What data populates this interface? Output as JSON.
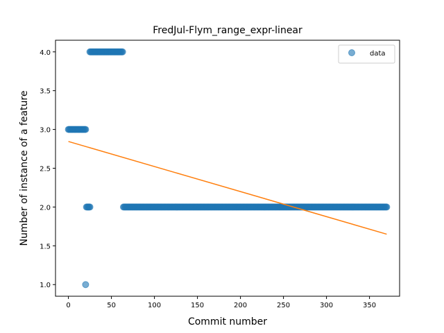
{
  "chart_data": {
    "type": "scatter",
    "title": "FredJul-Flym_range_expr-linear",
    "xlabel": "Commit number",
    "ylabel": "Number of instance of a feature",
    "xlim": [
      -15,
      385
    ],
    "ylim": [
      0.85,
      4.15
    ],
    "xticks": [
      0,
      50,
      100,
      150,
      200,
      250,
      300,
      350
    ],
    "yticks": [
      1.0,
      1.5,
      2.0,
      2.5,
      3.0,
      3.5,
      4.0
    ],
    "grid": false,
    "legend_position": "top-right",
    "colors": {
      "data": "#1f77b4",
      "fit": "#ff7f0e",
      "axes": "#000000"
    },
    "series": [
      {
        "name": "data",
        "kind": "scatter",
        "segments": [
          {
            "x_start": 0,
            "x_end": 20,
            "y": 3.0
          },
          {
            "x_start": 21,
            "x_end": 25,
            "y": 2.0
          },
          {
            "x_start": 20,
            "x_end": 20,
            "y": 1.0
          },
          {
            "x_start": 25,
            "x_end": 63,
            "y": 4.0
          },
          {
            "x_start": 64,
            "x_end": 370,
            "y": 2.0
          }
        ]
      },
      {
        "name": "",
        "kind": "line",
        "x": [
          0,
          370
        ],
        "y": [
          2.845,
          1.65
        ]
      }
    ]
  }
}
